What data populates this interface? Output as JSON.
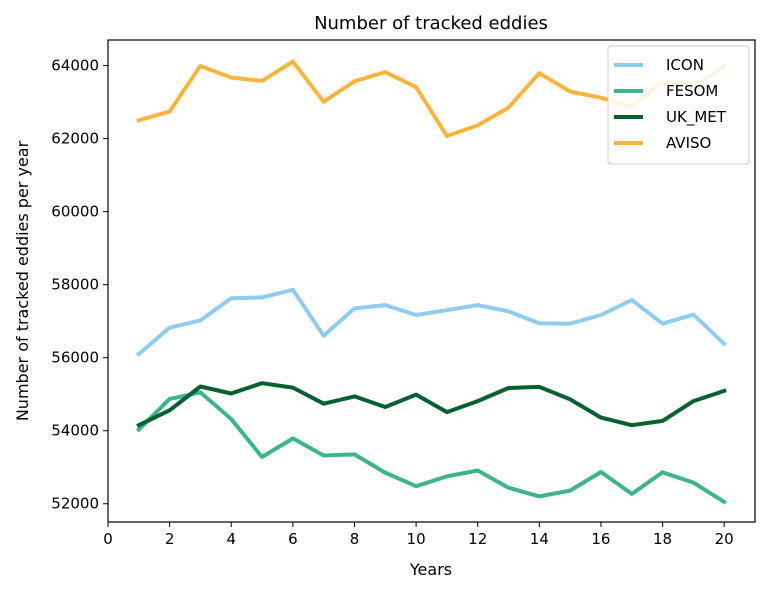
{
  "chart_data": {
    "type": "line",
    "title": "Number of tracked eddies",
    "xlabel": "Years",
    "ylabel": "Number of tracked eddies per year",
    "xlim": [
      0,
      21
    ],
    "ylim": [
      51500,
      64700
    ],
    "xticks": [
      0,
      2,
      4,
      6,
      8,
      10,
      12,
      14,
      16,
      18,
      20
    ],
    "yticks": [
      52000,
      54000,
      56000,
      58000,
      60000,
      62000,
      64000
    ],
    "grid": false,
    "legend_position": "top-right",
    "x": [
      1,
      2,
      3,
      4,
      5,
      6,
      7,
      8,
      9,
      10,
      11,
      12,
      13,
      14,
      15,
      16,
      17,
      18,
      19,
      20
    ],
    "series": [
      {
        "name": "ICON",
        "color": "#8ecdf0",
        "values": [
          56100,
          56820,
          57020,
          57630,
          57650,
          57860,
          56600,
          57350,
          57440,
          57170,
          57300,
          57440,
          57270,
          56940,
          56930,
          57170,
          57580,
          56930,
          57180,
          56380
        ]
      },
      {
        "name": "FESOM",
        "color": "#3db58c",
        "values": [
          54030,
          54870,
          55050,
          54320,
          53280,
          53790,
          53320,
          53350,
          52850,
          52480,
          52750,
          52910,
          52440,
          52200,
          52360,
          52870,
          52270,
          52860,
          52580,
          52050
        ]
      },
      {
        "name": "UK_MET",
        "color": "#05612f",
        "values": [
          54150,
          54560,
          55210,
          55020,
          55300,
          55180,
          54740,
          54940,
          54650,
          54990,
          54510,
          54810,
          55170,
          55200,
          54860,
          54360,
          54150,
          54270,
          54810,
          55090
        ]
      },
      {
        "name": "AVISO",
        "color": "#fdb43b",
        "values": [
          62500,
          62740,
          63990,
          63670,
          63580,
          64110,
          63010,
          63570,
          63820,
          63410,
          62070,
          62360,
          62850,
          63790,
          63290,
          63120,
          62880,
          63550,
          63420,
          63970
        ]
      }
    ]
  }
}
